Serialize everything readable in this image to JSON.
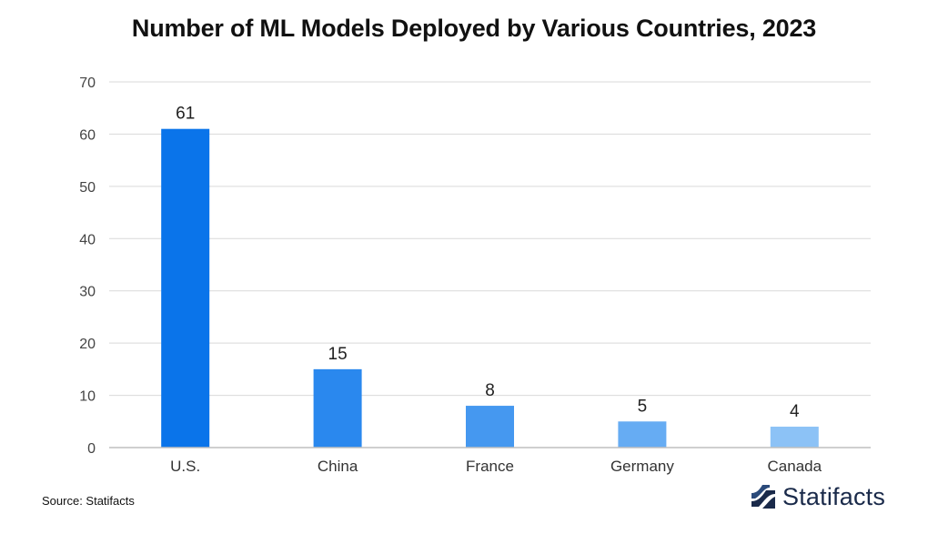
{
  "chart_data": {
    "type": "bar",
    "title": "Number of ML Models Deployed by Various Countries, 2023",
    "xlabel": "",
    "ylabel": "",
    "categories": [
      "U.S.",
      "China",
      "France",
      "Germany",
      "Canada"
    ],
    "values": [
      61,
      15,
      8,
      5,
      4
    ],
    "data_labels": [
      "61",
      "15",
      "8",
      "5",
      "4"
    ],
    "ylim": [
      0,
      70
    ],
    "yticks": [
      0,
      10,
      20,
      30,
      40,
      50,
      60,
      70
    ],
    "grid": true,
    "legend": "none",
    "bar_colors": [
      "#0a74ea",
      "#2a88ee",
      "#4598f0",
      "#66acf3",
      "#8cc2f6"
    ]
  },
  "footer": {
    "source": "Source: Statifacts",
    "brand": "Statifacts"
  },
  "colors": {
    "grid": "#d9d9d9",
    "axis": "#bfbfbf",
    "brand": "#1a2a4a"
  }
}
